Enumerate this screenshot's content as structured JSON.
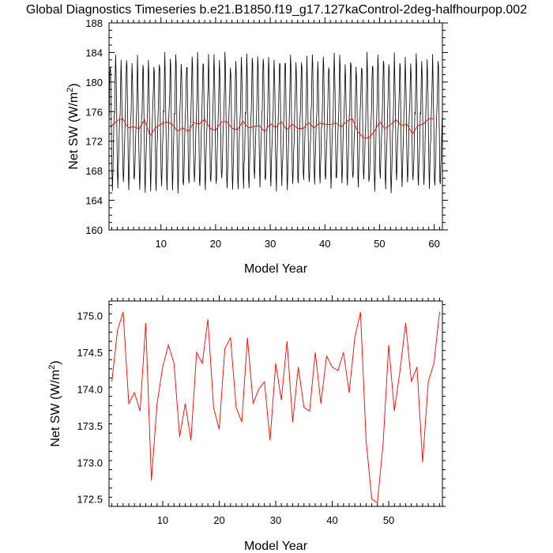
{
  "title": "Global Diagnostics Timeseries b.e21.B1850.f19_g17.127kaControl-2deg-halfhourpop.002",
  "colors": {
    "monthly": "#000000",
    "annual": "#ff0000"
  },
  "chart_data": [
    {
      "type": "line",
      "xlabel": "Model Year",
      "ylabel_base": "Net SW (W/m",
      "ylabel_sup": "2",
      "ylabel_end": ")",
      "xlim": [
        0.5,
        61.5
      ],
      "ylim": [
        160,
        188
      ],
      "xticks": [
        10,
        20,
        30,
        40,
        50,
        60
      ],
      "yticks": [
        160,
        164,
        168,
        172,
        176,
        180,
        184,
        188
      ],
      "grid": false,
      "series": [
        {
          "style": "monthly",
          "monthly_cycle": [
            176.5,
            180.0,
            183.0,
            181.5,
            177.0,
            172.0,
            167.5,
            166.0,
            168.0,
            170.5,
            173.0,
            175.0
          ],
          "year_start": 0.54,
          "year_step": 0.0833
        },
        {
          "style": "annual",
          "x": [
            1,
            2,
            3,
            4,
            5,
            6,
            7,
            8,
            9,
            10,
            11,
            12,
            13,
            14,
            15,
            16,
            17,
            18,
            19,
            20,
            21,
            22,
            23,
            24,
            25,
            26,
            27,
            28,
            29,
            30,
            31,
            32,
            33,
            34,
            35,
            36,
            37,
            38,
            39,
            40,
            41,
            42,
            43,
            44,
            45,
            46,
            47,
            48,
            49,
            50,
            51,
            52,
            53,
            54,
            55,
            56,
            57,
            58,
            59,
            60
          ],
          "values": [
            174.1,
            174.8,
            175.05,
            173.8,
            173.95,
            173.7,
            174.9,
            172.75,
            173.8,
            174.3,
            174.6,
            174.35,
            173.35,
            173.8,
            173.3,
            174.5,
            174.35,
            174.95,
            173.75,
            173.45,
            174.55,
            174.7,
            173.75,
            173.55,
            174.7,
            173.8,
            174.0,
            174.1,
            173.3,
            174.35,
            173.85,
            174.65,
            173.55,
            174.3,
            173.75,
            173.7,
            174.5,
            173.8,
            174.45,
            174.3,
            174.25,
            174.5,
            173.95,
            174.7,
            175.05,
            173.3,
            172.5,
            172.45,
            173.25,
            174.6,
            173.7,
            174.25,
            174.9,
            174.1,
            174.3,
            173.0,
            174.1,
            174.35,
            175.05,
            175.05
          ]
        }
      ]
    },
    {
      "type": "line",
      "xlabel": "Model Year",
      "ylabel_base": "Net SW (W/m",
      "ylabel_sup": "2",
      "ylabel_end": ")",
      "xlim": [
        0.5,
        59.5
      ],
      "ylim": [
        172.4,
        175.2
      ],
      "xticks": [
        10,
        20,
        30,
        40,
        50
      ],
      "yticks": [
        172.5,
        173.0,
        173.5,
        174.0,
        174.5,
        175.0
      ],
      "ytick_labels": [
        "172.5",
        "173.0",
        "173.5",
        "174.0",
        "174.5",
        "175.0"
      ],
      "grid": false,
      "series": [
        {
          "style": "annual",
          "x": [
            1,
            2,
            3,
            4,
            5,
            6,
            7,
            8,
            9,
            10,
            11,
            12,
            13,
            14,
            15,
            16,
            17,
            18,
            19,
            20,
            21,
            22,
            23,
            24,
            25,
            26,
            27,
            28,
            29,
            30,
            31,
            32,
            33,
            34,
            35,
            36,
            37,
            38,
            39,
            40,
            41,
            42,
            43,
            44,
            45,
            46,
            47,
            48,
            49,
            50,
            51,
            52,
            53,
            54,
            55,
            56,
            57,
            58,
            59
          ],
          "values": [
            174.1,
            174.8,
            175.05,
            173.8,
            173.95,
            173.7,
            174.9,
            172.75,
            173.8,
            174.3,
            174.6,
            174.35,
            173.35,
            173.8,
            173.3,
            174.5,
            174.35,
            174.95,
            173.75,
            173.45,
            174.55,
            174.7,
            173.75,
            173.55,
            174.7,
            173.8,
            174.0,
            174.1,
            173.3,
            174.35,
            173.85,
            174.65,
            173.55,
            174.3,
            173.75,
            173.7,
            174.5,
            173.8,
            174.45,
            174.3,
            174.25,
            174.5,
            173.95,
            174.7,
            175.05,
            173.3,
            172.5,
            172.45,
            173.25,
            174.6,
            173.7,
            174.25,
            174.9,
            174.1,
            174.3,
            173.0,
            174.1,
            174.35,
            175.05
          ]
        }
      ]
    }
  ]
}
